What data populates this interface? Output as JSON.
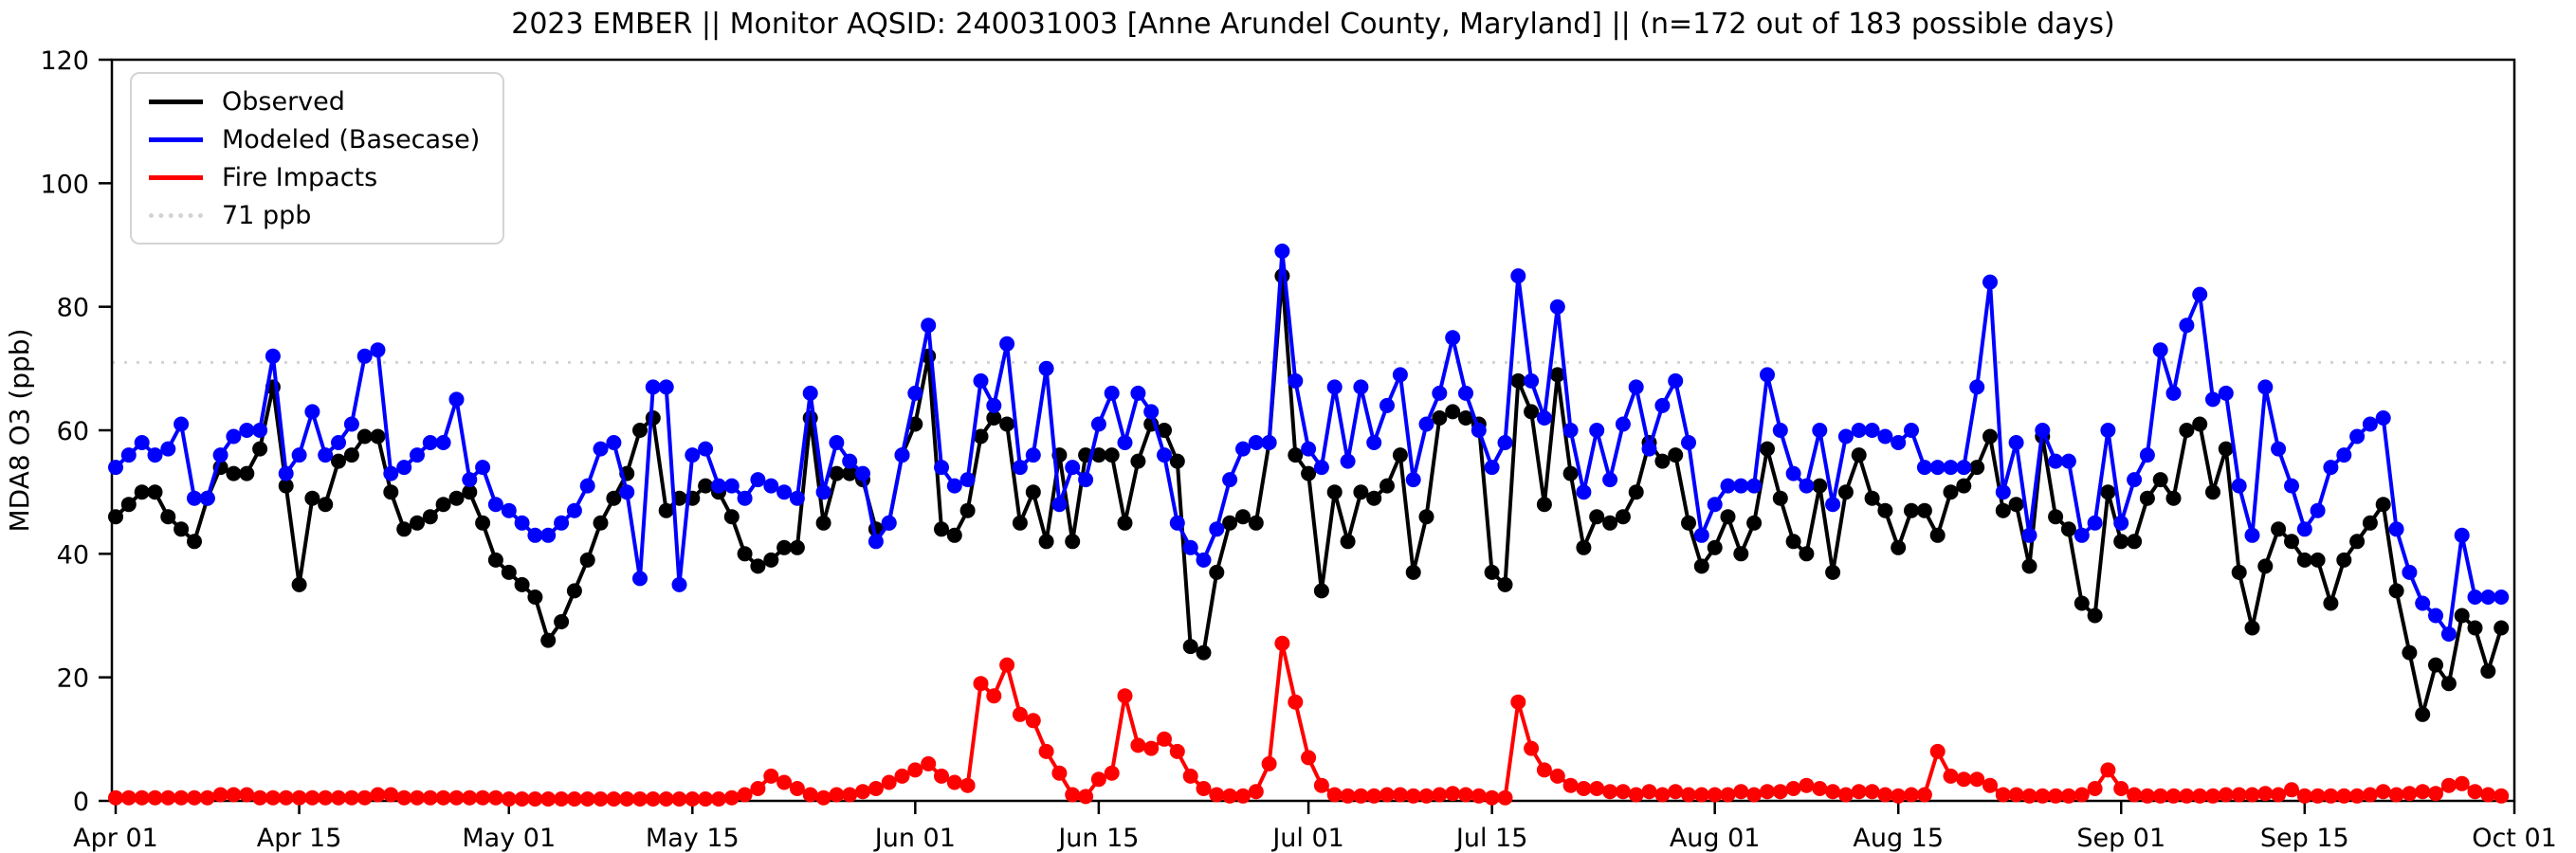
{
  "chart_data": {
    "type": "line",
    "title": "2023 EMBER || Monitor AQSID: 240031003 [Anne Arundel County, Maryland] || (n=172 out of 183 possible days)",
    "ylabel": "MDA8 O3 (ppb)",
    "ylim": [
      0,
      120
    ],
    "yticks": [
      0,
      20,
      40,
      60,
      80,
      100,
      120
    ],
    "grid": false,
    "legend_position": "upper-left",
    "x_start_date": "2023-04-01",
    "n_days": 183,
    "x_ticks": [
      {
        "label": "Apr 01",
        "day": 0
      },
      {
        "label": "Apr 15",
        "day": 14
      },
      {
        "label": "May 01",
        "day": 30
      },
      {
        "label": "May 15",
        "day": 44
      },
      {
        "label": "Jun 01",
        "day": 61
      },
      {
        "label": "Jun 15",
        "day": 75
      },
      {
        "label": "Jul 01",
        "day": 91
      },
      {
        "label": "Jul 15",
        "day": 105
      },
      {
        "label": "Aug 01",
        "day": 122
      },
      {
        "label": "Aug 15",
        "day": 136
      },
      {
        "label": "Sep 01",
        "day": 153
      },
      {
        "label": "Sep 15",
        "day": 167
      },
      {
        "label": "Oct 01",
        "day": 183
      }
    ],
    "reference_line": {
      "value": 71,
      "label": "71 ppb",
      "color": "#d3d3d3",
      "style": "dotted"
    },
    "legend": [
      {
        "label": "Observed",
        "color": "#000000",
        "line": "solid"
      },
      {
        "label": "Modeled (Basecase)",
        "color": "#0000ff",
        "line": "solid"
      },
      {
        "label": "Fire Impacts",
        "color": "#ff0000",
        "line": "solid"
      },
      {
        "label": "71 ppb",
        "color": "#d3d3d3",
        "line": "dotted"
      }
    ],
    "series": [
      {
        "name": "Observed",
        "color": "#000000",
        "values": [
          46,
          48,
          50,
          50,
          46,
          44,
          42,
          49,
          54,
          53,
          53,
          57,
          67,
          51,
          35,
          49,
          48,
          55,
          56,
          59,
          59,
          50,
          44,
          45,
          46,
          48,
          49,
          50,
          45,
          39,
          37,
          35,
          33,
          26,
          29,
          34,
          39,
          45,
          49,
          53,
          60,
          62,
          47,
          49,
          49,
          51,
          50,
          46,
          40,
          38,
          39,
          41,
          41,
          62,
          45,
          53,
          53,
          52,
          44,
          45,
          56,
          61,
          72,
          44,
          43,
          47,
          59,
          62,
          61,
          45,
          50,
          42,
          56,
          42,
          56,
          56,
          56,
          45,
          55,
          61,
          60,
          55,
          25,
          24,
          37,
          45,
          46,
          45,
          58,
          85,
          56,
          53,
          34,
          50,
          42,
          50,
          49,
          51,
          56,
          37,
          46,
          62,
          63,
          62,
          61,
          37,
          35,
          68,
          63,
          48,
          69,
          53,
          41,
          46,
          45,
          46,
          50,
          58,
          55,
          56,
          45,
          38,
          41,
          46,
          40,
          45,
          57,
          49,
          42,
          40,
          51,
          37,
          50,
          56,
          49,
          47,
          41,
          47,
          47,
          43,
          50,
          51,
          54,
          59,
          47,
          48,
          38,
          59,
          46,
          44,
          32,
          30,
          50,
          42,
          42,
          49,
          52,
          49,
          60,
          61,
          50,
          57,
          37,
          28,
          38,
          44,
          42,
          39,
          39,
          32,
          39,
          42,
          45,
          48,
          34,
          24,
          14,
          22,
          19,
          30,
          28,
          21,
          28
        ]
      },
      {
        "name": "Modeled (Basecase)",
        "color": "#0000ff",
        "values": [
          54,
          56,
          58,
          56,
          57,
          61,
          49,
          49,
          56,
          59,
          60,
          60,
          72,
          53,
          56,
          63,
          56,
          58,
          61,
          72,
          73,
          53,
          54,
          56,
          58,
          58,
          65,
          52,
          54,
          48,
          47,
          45,
          43,
          43,
          45,
          47,
          51,
          57,
          58,
          50,
          36,
          67,
          67,
          35,
          56,
          57,
          51,
          51,
          49,
          52,
          51,
          50,
          49,
          66,
          50,
          58,
          55,
          53,
          42,
          45,
          56,
          66,
          77,
          54,
          51,
          52,
          68,
          64,
          74,
          54,
          56,
          70,
          48,
          54,
          52,
          61,
          66,
          58,
          66,
          63,
          56,
          45,
          41,
          39,
          44,
          52,
          57,
          58,
          58,
          89,
          68,
          57,
          54,
          67,
          55,
          67,
          58,
          64,
          69,
          52,
          61,
          66,
          75,
          66,
          60,
          54,
          58,
          85,
          68,
          62,
          80,
          60,
          50,
          60,
          52,
          61,
          67,
          57,
          64,
          68,
          58,
          43,
          48,
          51,
          51,
          51,
          69,
          60,
          53,
          51,
          60,
          48,
          59,
          60,
          60,
          59,
          58,
          60,
          54,
          54,
          54,
          54,
          67,
          84,
          50,
          58,
          43,
          60,
          55,
          55,
          43,
          45,
          60,
          45,
          52,
          56,
          73,
          66,
          77,
          82,
          65,
          66,
          51,
          43,
          67,
          57,
          51,
          44,
          47,
          54,
          56,
          59,
          61,
          62,
          44,
          37,
          32,
          30,
          27,
          43,
          33,
          33,
          33
        ]
      },
      {
        "name": "Fire Impacts",
        "color": "#ff0000",
        "values": [
          0.5,
          0.5,
          0.5,
          0.5,
          0.5,
          0.5,
          0.5,
          0.5,
          1,
          1,
          1,
          0.5,
          0.5,
          0.5,
          0.5,
          0.5,
          0.5,
          0.5,
          0.5,
          0.5,
          1,
          1,
          0.5,
          0.5,
          0.5,
          0.5,
          0.5,
          0.5,
          0.5,
          0.5,
          0.3,
          0.3,
          0.3,
          0.3,
          0.3,
          0.3,
          0.3,
          0.3,
          0.3,
          0.3,
          0.3,
          0.3,
          0.3,
          0.3,
          0.3,
          0.3,
          0.3,
          0.5,
          1,
          2,
          4,
          3,
          2,
          1,
          0.5,
          1,
          1,
          1.5,
          2,
          3,
          4,
          5,
          6,
          4,
          3,
          2.5,
          19,
          17,
          22,
          14,
          13,
          8,
          4.5,
          1,
          0.7,
          3.5,
          4.5,
          17,
          9,
          8.5,
          10,
          8,
          4,
          2,
          1,
          0.8,
          0.8,
          1.5,
          6,
          25.5,
          16,
          7,
          2.5,
          1,
          0.8,
          0.8,
          0.8,
          1,
          1,
          0.8,
          0.8,
          1,
          1.2,
          1,
          0.8,
          0.5,
          0.5,
          16,
          8.5,
          5,
          4,
          2.5,
          2,
          2,
          1.5,
          1.5,
          1,
          1.5,
          1,
          1.5,
          1,
          1,
          1,
          1,
          1.5,
          1,
          1.5,
          1.5,
          2,
          2.5,
          2,
          1.5,
          1,
          1.5,
          1.5,
          1,
          0.8,
          1,
          1,
          8,
          4,
          3.5,
          3.5,
          2.5,
          1,
          1,
          0.8,
          0.8,
          0.8,
          0.8,
          1,
          2,
          5,
          2,
          1,
          0.8,
          0.8,
          0.8,
          0.8,
          0.8,
          0.8,
          1,
          1,
          1,
          1.2,
          1,
          1.8,
          0.8,
          0.8,
          0.8,
          0.8,
          0.8,
          1,
          1.5,
          1,
          1.2,
          1.5,
          1.2,
          2.5,
          2.8,
          1.5,
          1,
          0.8
        ]
      }
    ]
  }
}
